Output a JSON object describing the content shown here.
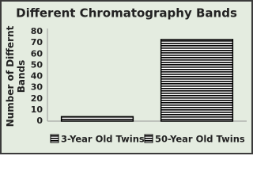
{
  "chart_data": {
    "type": "bar",
    "title": "Different Chromatography Bands",
    "y_label": "Number of Differnt Bands",
    "categories": [
      null
    ],
    "series": [
      {
        "name": "3-Year Old Twins",
        "color": "#000000",
        "values": [
          4
        ]
      },
      {
        "name": "50-Year Old Twins",
        "color": "#000000",
        "values": [
          73
        ]
      }
    ],
    "ylim": [
      0,
      80
    ],
    "yticks": [
      0,
      10,
      20,
      30,
      40,
      50,
      60,
      70,
      80
    ],
    "grid": false,
    "legend": "bottom"
  }
}
